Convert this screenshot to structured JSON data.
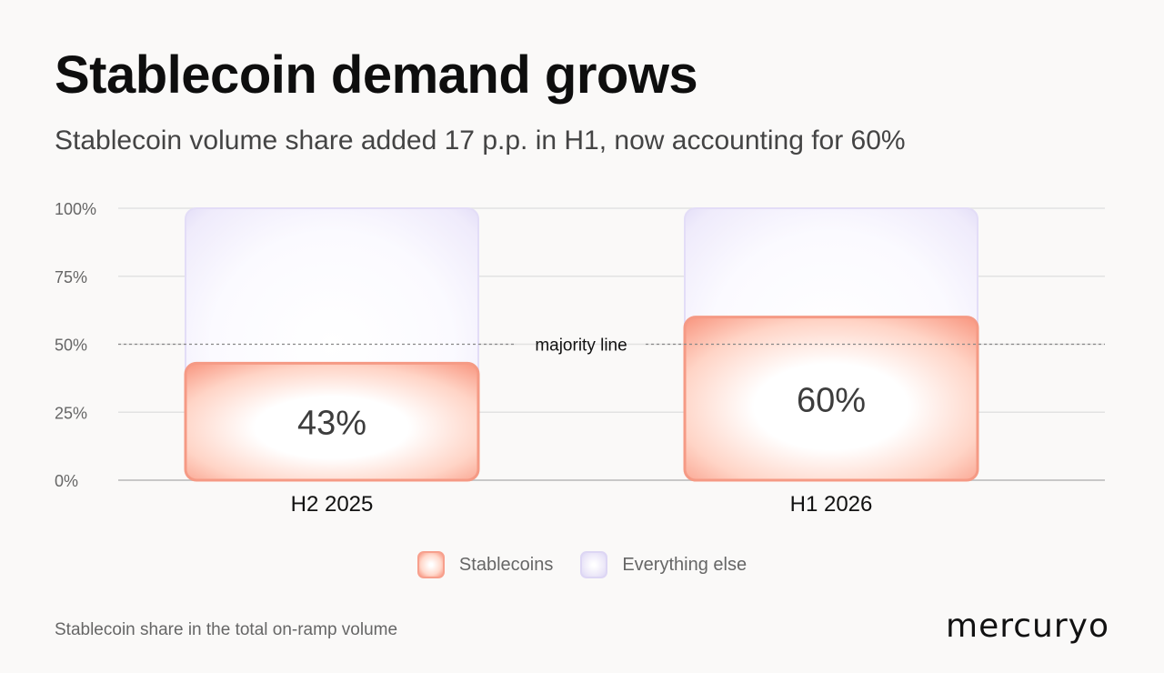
{
  "title": "Stablecoin demand grows",
  "subtitle": "Stablecoin volume share added 17 p.p. in H1, now accounting for 60%",
  "footnote": "Stablecoin share in the total on-ramp volume",
  "brand": "mercuryo",
  "chart_data": {
    "type": "bar",
    "stacked": true,
    "categories": [
      "H2 2025",
      "H1 2026"
    ],
    "series": [
      {
        "name": "Stablecoins",
        "values": [
          43,
          60
        ],
        "color": "#f7937d"
      },
      {
        "name": "Everything else",
        "values": [
          57,
          40
        ],
        "color": "#ddd7f5"
      }
    ],
    "data_labels": [
      "43%",
      "60%"
    ],
    "ylim": [
      0,
      100
    ],
    "yticks": [
      0,
      25,
      50,
      75,
      100
    ],
    "ytick_labels": [
      "0%",
      "25%",
      "50%",
      "75%",
      "100%"
    ],
    "grid": true,
    "reference_line": {
      "value": 50,
      "label": "majority line"
    },
    "legend_position": "bottom-center",
    "xlabel": "",
    "ylabel": ""
  }
}
